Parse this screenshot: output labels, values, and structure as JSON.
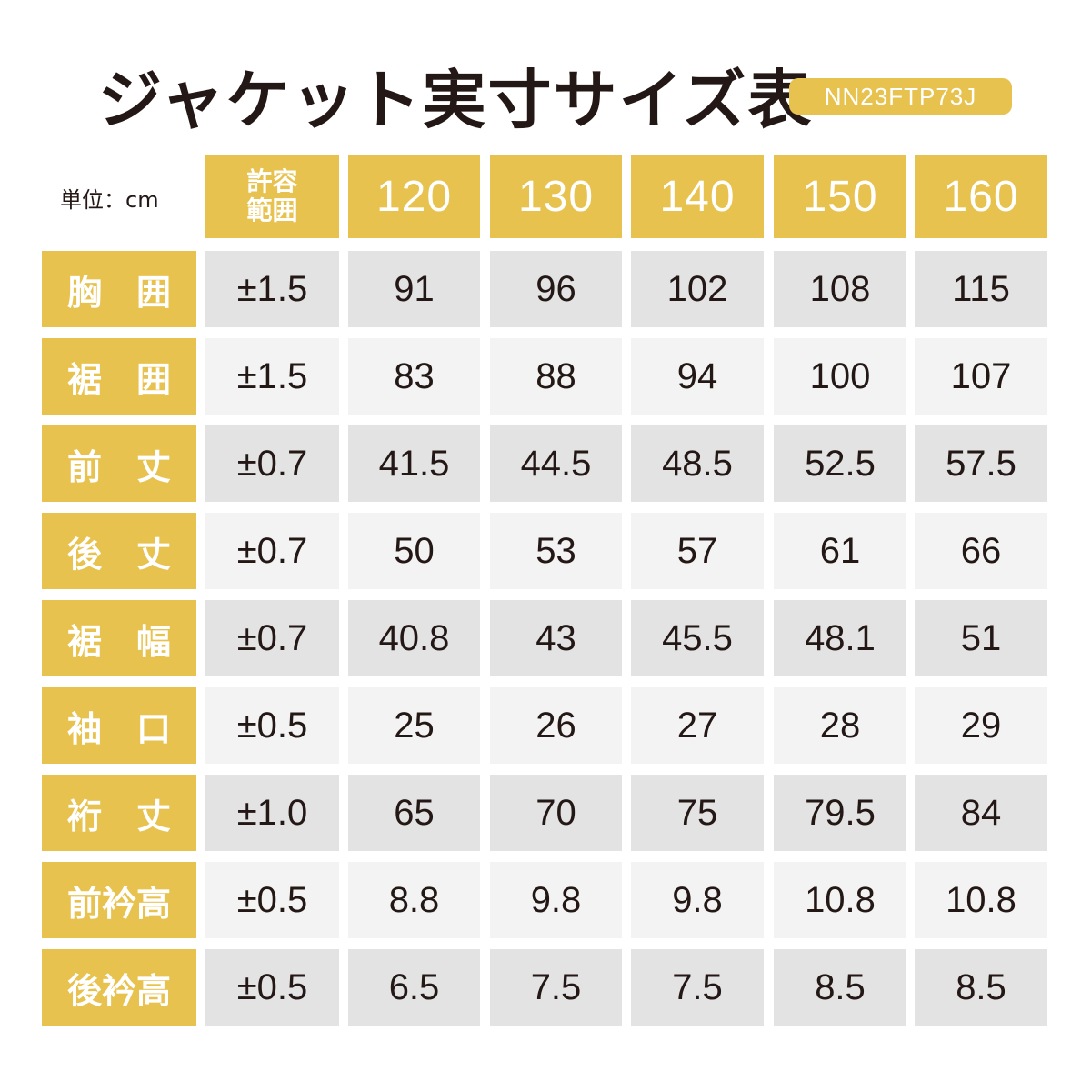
{
  "title": "ジャケット実寸サイズ表",
  "code": "NN23FTP73J",
  "unit": "単位：cm",
  "table": {
    "tolerance_header": "許容\n範囲",
    "sizes": [
      "120",
      "130",
      "140",
      "150",
      "160"
    ],
    "rows": [
      {
        "label": "胸　囲",
        "tolerance": "±1.5",
        "values": [
          "91",
          "96",
          "102",
          "108",
          "115"
        ]
      },
      {
        "label": "裾　囲",
        "tolerance": "±1.5",
        "values": [
          "83",
          "88",
          "94",
          "100",
          "107"
        ]
      },
      {
        "label": "前　丈",
        "tolerance": "±0.7",
        "values": [
          "41.5",
          "44.5",
          "48.5",
          "52.5",
          "57.5"
        ]
      },
      {
        "label": "後　丈",
        "tolerance": "±0.7",
        "values": [
          "50",
          "53",
          "57",
          "61",
          "66"
        ]
      },
      {
        "label": "裾　幅",
        "tolerance": "±0.7",
        "values": [
          "40.8",
          "43",
          "45.5",
          "48.1",
          "51"
        ]
      },
      {
        "label": "袖　口",
        "tolerance": "±0.5",
        "values": [
          "25",
          "26",
          "27",
          "28",
          "29"
        ]
      },
      {
        "label": "裄　丈",
        "tolerance": "±1.0",
        "values": [
          "65",
          "70",
          "75",
          "79.5",
          "84"
        ]
      },
      {
        "label": "前衿高",
        "tolerance": "±0.5",
        "values": [
          "8.8",
          "9.8",
          "9.8",
          "10.8",
          "10.8"
        ]
      },
      {
        "label": "後衿高",
        "tolerance": "±0.5",
        "values": [
          "6.5",
          "7.5",
          "7.5",
          "8.5",
          "8.5"
        ]
      }
    ]
  },
  "colors": {
    "accent": "#e8c24e",
    "text": "#231815",
    "row_shade_dark": "#e3e3e3",
    "row_shade_light": "#f3f3f3"
  }
}
